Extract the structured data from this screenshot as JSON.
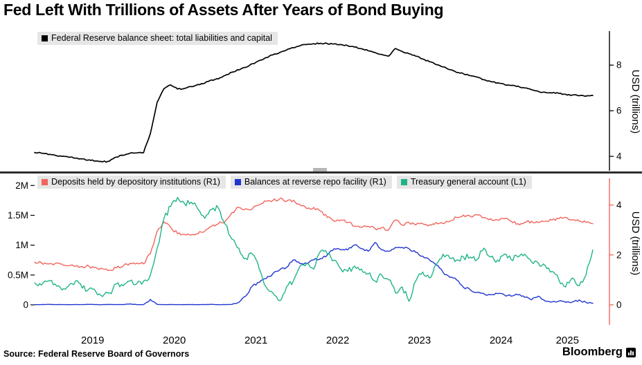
{
  "title": "Fed Left With Trillions of Assets After Years of Bond Buying",
  "source": "Source: Federal Reserve Board of Governors",
  "brand": "Bloomberg",
  "colors": {
    "balance_sheet": "#000000",
    "deposits": "#f2645c",
    "reverse_repo": "#1f35cf",
    "tga": "#1eb488",
    "legend_bg": "#e6e6e6",
    "divider": "#2d2d2d"
  },
  "chart_data": [
    {
      "type": "line",
      "panel": "top",
      "legend": [
        {
          "label": "Federal Reserve balance sheet: total liabilities and capital",
          "color": "#000000"
        }
      ],
      "ylabel_right": "USD (trillions)",
      "yticks_right": [
        4,
        6,
        8
      ],
      "ylim_right": [
        3.4,
        9.4
      ],
      "x": {
        "start_year": 2018.79,
        "step_years": 0.08333,
        "count": 83,
        "unit": "decimal-year, monthly"
      },
      "series": [
        {
          "name": "Federal Reserve balance sheet: total liabilities and capital",
          "axis": "right",
          "color": "#000000",
          "noise": 0.03,
          "values": [
            4.17,
            4.14,
            4.08,
            4.05,
            4.0,
            3.96,
            3.92,
            3.89,
            3.85,
            3.8,
            3.76,
            3.79,
            3.97,
            4.05,
            4.14,
            4.15,
            4.16,
            5.0,
            6.37,
            6.97,
            7.13,
            6.95,
            6.98,
            7.06,
            7.15,
            7.21,
            7.35,
            7.4,
            7.55,
            7.69,
            7.79,
            7.9,
            8.06,
            8.2,
            8.33,
            8.45,
            8.55,
            8.66,
            8.76,
            8.85,
            8.9,
            8.94,
            8.96,
            8.94,
            8.93,
            8.9,
            8.85,
            8.79,
            8.72,
            8.63,
            8.55,
            8.47,
            8.39,
            8.73,
            8.6,
            8.5,
            8.39,
            8.27,
            8.15,
            8.02,
            7.92,
            7.8,
            7.68,
            7.62,
            7.54,
            7.48,
            7.36,
            7.28,
            7.22,
            7.15,
            7.11,
            7.08,
            7.0,
            6.92,
            6.85,
            6.81,
            6.78,
            6.76,
            6.72,
            6.69,
            6.66,
            6.64,
            6.67
          ]
        }
      ]
    },
    {
      "type": "line",
      "panel": "bottom",
      "legend": [
        {
          "label": "Deposits held by depository institutions (R1)",
          "color": "#f2645c"
        },
        {
          "label": "Balances at reverse repo facility (R1)",
          "color": "#1f35cf"
        },
        {
          "label": "Treasury general account (L1)",
          "color": "#1eb488"
        }
      ],
      "ylabel_right": "USD (trillions)",
      "yticks_right": [
        0,
        2,
        4
      ],
      "ylim_right": [
        0,
        4.9
      ],
      "yticks_left_labels": [
        "0",
        "0.5M",
        "1M",
        "1.5M",
        "2M"
      ],
      "yticks_left_values": [
        0,
        0.5,
        1,
        1.5,
        2
      ],
      "ylim_left": [
        0,
        2.05
      ],
      "xticks": [
        2019,
        2020,
        2021,
        2022,
        2023,
        2024,
        2025
      ],
      "x": {
        "start_year": 2018.79,
        "step_years": 0.08333,
        "count": 83,
        "unit": "decimal-year, monthly"
      },
      "series": [
        {
          "name": "Deposits held by depository institutions",
          "axis": "right",
          "color": "#f2645c",
          "noise": 0.06,
          "values": [
            1.71,
            1.68,
            1.64,
            1.66,
            1.63,
            1.57,
            1.55,
            1.53,
            1.54,
            1.5,
            1.44,
            1.39,
            1.48,
            1.55,
            1.66,
            1.67,
            1.64,
            2.05,
            2.95,
            3.32,
            3.1,
            2.85,
            2.82,
            2.8,
            2.85,
            2.95,
            3.15,
            3.25,
            3.35,
            3.7,
            3.9,
            3.85,
            3.85,
            4.0,
            4.15,
            4.18,
            4.25,
            4.15,
            4.19,
            4.0,
            3.85,
            3.9,
            3.75,
            3.5,
            3.35,
            3.4,
            3.3,
            3.15,
            3.1,
            3.15,
            3.05,
            3.1,
            3.0,
            3.4,
            3.2,
            3.3,
            3.2,
            3.25,
            3.2,
            3.3,
            3.25,
            3.35,
            3.5,
            3.6,
            3.55,
            3.6,
            3.5,
            3.45,
            3.4,
            3.45,
            3.35,
            3.25,
            3.3,
            3.35,
            3.3,
            3.35,
            3.4,
            3.45,
            3.5,
            3.4,
            3.35,
            3.3,
            3.25
          ]
        },
        {
          "name": "Balances at reverse repo facility",
          "axis": "right",
          "color": "#1f35cf",
          "noise": 0.045,
          "values": [
            0.01,
            0.01,
            0.02,
            0.01,
            0.01,
            0.01,
            0.01,
            0.01,
            0.02,
            0.01,
            0.01,
            0.02,
            0.01,
            0.01,
            0.04,
            0.01,
            0.01,
            0.22,
            0.02,
            0.01,
            0.01,
            0.01,
            0.01,
            0.01,
            0.01,
            0.01,
            0.02,
            0.01,
            0.01,
            0.02,
            0.1,
            0.35,
            0.75,
            0.9,
            1.05,
            1.25,
            1.4,
            1.5,
            1.8,
            1.65,
            1.65,
            1.8,
            1.85,
            2.0,
            2.25,
            2.2,
            2.2,
            2.4,
            2.25,
            2.15,
            2.5,
            2.2,
            2.15,
            2.3,
            2.3,
            2.25,
            2.1,
            1.95,
            1.8,
            1.6,
            1.3,
            1.1,
            1.0,
            0.7,
            0.6,
            0.5,
            0.45,
            0.4,
            0.45,
            0.4,
            0.35,
            0.4,
            0.3,
            0.2,
            0.35,
            0.15,
            0.12,
            0.15,
            0.1,
            0.12,
            0.2,
            0.1,
            0.06
          ]
        },
        {
          "name": "Treasury general account",
          "axis": "left",
          "color": "#1eb488",
          "noise": 0.05,
          "values": [
            0.37,
            0.33,
            0.4,
            0.35,
            0.25,
            0.32,
            0.4,
            0.28,
            0.27,
            0.22,
            0.14,
            0.2,
            0.35,
            0.32,
            0.4,
            0.35,
            0.4,
            0.5,
            0.95,
            1.45,
            1.65,
            1.8,
            1.7,
            1.72,
            1.6,
            1.45,
            1.6,
            1.62,
            1.35,
            1.1,
            0.95,
            0.78,
            0.85,
            0.6,
            0.3,
            0.2,
            0.07,
            0.3,
            0.4,
            0.65,
            0.7,
            0.6,
            0.9,
            0.85,
            0.75,
            0.6,
            0.56,
            0.65,
            0.6,
            0.52,
            0.4,
            0.5,
            0.42,
            0.2,
            0.3,
            0.06,
            0.4,
            0.55,
            0.45,
            0.68,
            0.85,
            0.78,
            0.75,
            0.8,
            0.8,
            0.76,
            0.95,
            0.8,
            0.75,
            0.85,
            0.76,
            0.8,
            0.85,
            0.72,
            0.7,
            0.66,
            0.56,
            0.42,
            0.3,
            0.45,
            0.32,
            0.5,
            0.92
          ]
        }
      ]
    }
  ]
}
